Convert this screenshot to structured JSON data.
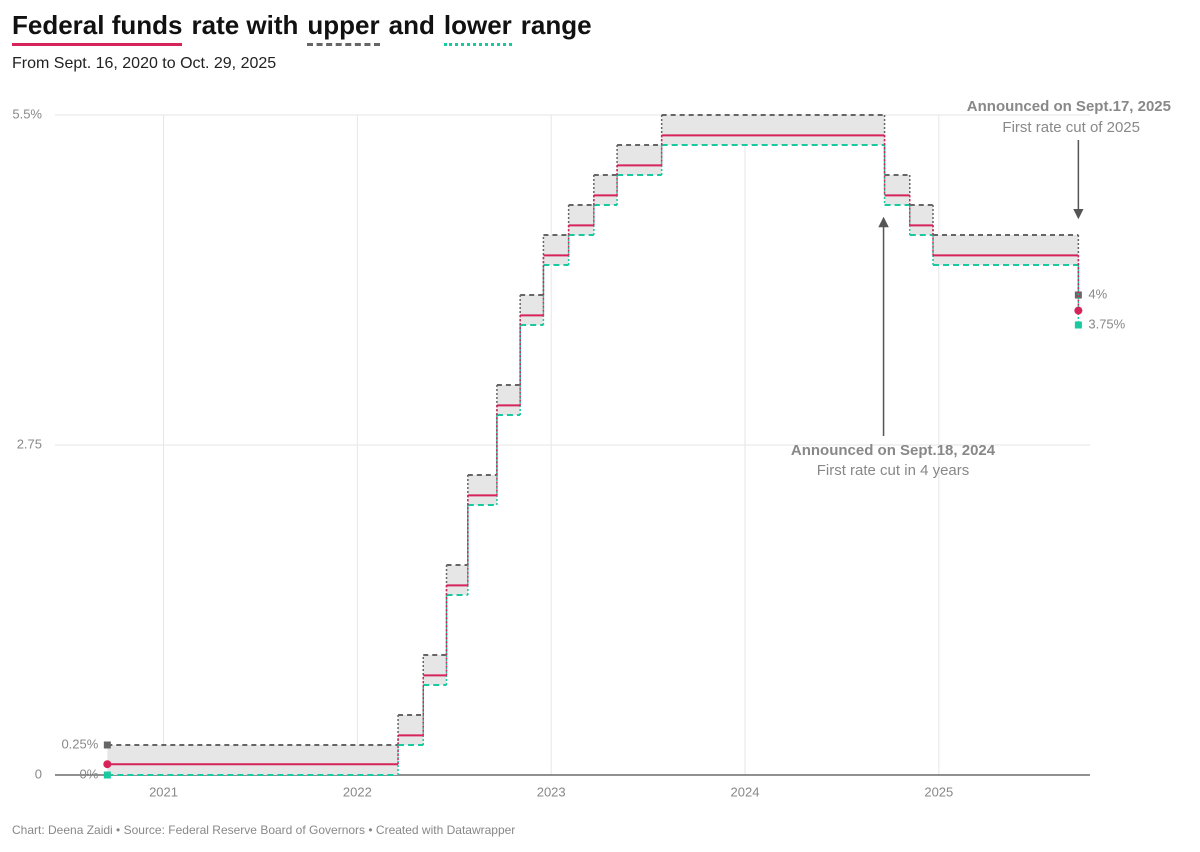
{
  "chart_data": {
    "type": "step",
    "title_words": [
      "rate with",
      "and",
      "range"
    ],
    "subtitle": "From Sept. 16, 2020 to Oct. 29, 2025",
    "source": "Chart: Deena Zaidi • Source: Federal Reserve Board of Governors • Created with Datawrapper",
    "x": [
      2020.71,
      2022.21,
      2022.34,
      2022.46,
      2022.57,
      2022.72,
      2022.84,
      2022.96,
      2023.09,
      2023.22,
      2023.34,
      2023.57,
      2024.72,
      2024.85,
      2024.97,
      2025.72
    ],
    "series": [
      {
        "name": "Federal funds",
        "color": "#d6245b",
        "values": [
          0.09,
          0.33,
          0.83,
          1.58,
          2.33,
          3.08,
          3.83,
          4.33,
          4.58,
          4.83,
          5.08,
          5.33,
          4.83,
          4.58,
          4.33,
          3.87
        ]
      },
      {
        "name": "upper",
        "color": "#666666",
        "values": [
          0.25,
          0.5,
          1,
          1.75,
          2.5,
          3.25,
          4,
          4.5,
          4.75,
          5,
          5.25,
          5.5,
          5,
          4.75,
          4.5,
          4
        ],
        "value_labels": [
          "0.25%",
          null,
          null,
          null,
          null,
          null,
          null,
          null,
          null,
          null,
          null,
          null,
          null,
          null,
          null,
          "4%"
        ]
      },
      {
        "name": "lower",
        "color": "#19c9a0",
        "values": [
          0,
          0.25,
          0.75,
          1.5,
          2.25,
          3,
          3.75,
          4.25,
          4.5,
          4.75,
          5,
          5.25,
          4.75,
          4.5,
          4.25,
          3.75
        ],
        "value_labels": [
          "0%",
          null,
          null,
          null,
          null,
          null,
          null,
          null,
          null,
          null,
          null,
          null,
          null,
          null,
          null,
          "3.75%"
        ]
      }
    ],
    "xlim": [
      2020.44,
      2025.78
    ],
    "xticks": [
      2021,
      2022,
      2023,
      2024,
      2025
    ],
    "ylim": [
      0,
      5.5
    ],
    "yticks": [
      0,
      2.75,
      {
        "value": 5.5,
        "label": "5.5%"
      }
    ],
    "grid": true,
    "annotations": [
      {
        "title": "Announced on Sept.18, 2024",
        "text": "First rate cut in 4 years"
      },
      {
        "title": "Announced on Sept.17, 2025",
        "text": "First rate cut of 2025"
      }
    ]
  }
}
